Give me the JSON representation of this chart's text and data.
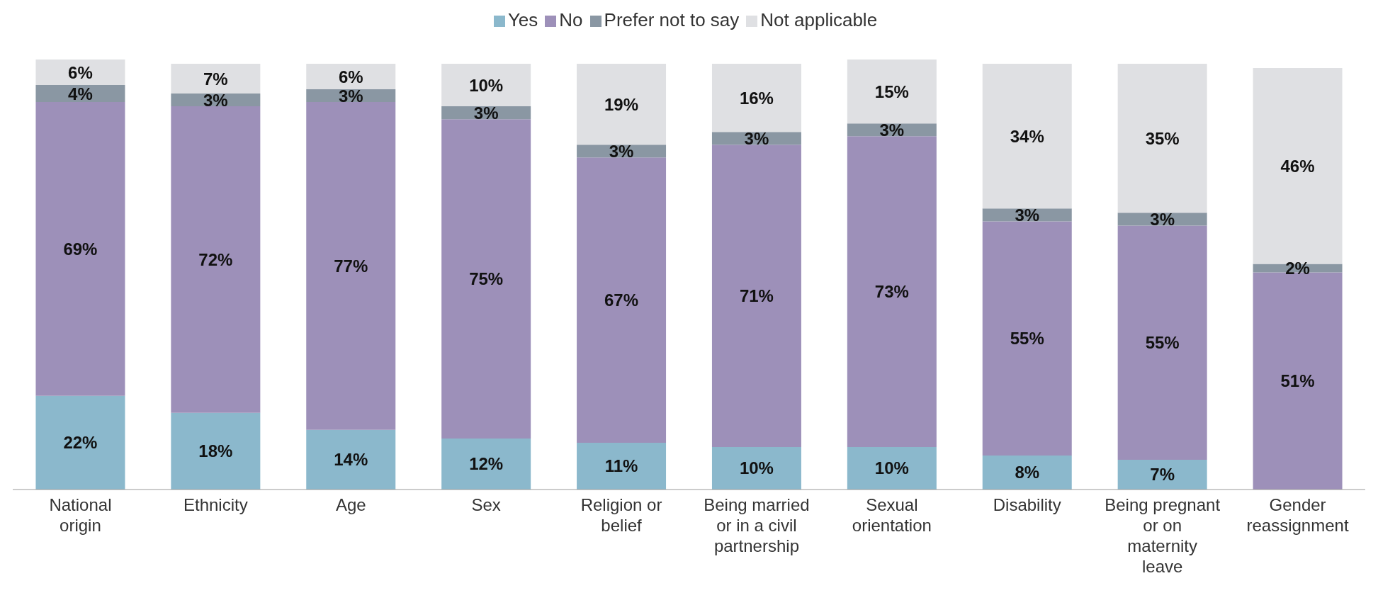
{
  "chart_data": {
    "type": "bar",
    "stacked": true,
    "legend": "top",
    "categories": [
      "National origin",
      "Ethnicity",
      "Age",
      "Sex",
      "Religion or belief",
      "Being married or in a civil partnership",
      "Sexual orientation",
      "Disability",
      "Being pregnant or on maternity leave",
      "Gender reassignment"
    ],
    "series": [
      {
        "name": "Yes",
        "color": "#8bb8cc",
        "values": [
          22,
          18,
          14,
          12,
          11,
          10,
          10,
          8,
          7,
          0
        ],
        "value_labels": [
          "22%",
          "18%",
          "14%",
          "12%",
          "11%",
          "10%",
          "10%",
          "8%",
          "7%",
          null
        ]
      },
      {
        "name": "No",
        "color": "#9d90b9",
        "values": [
          69,
          72,
          77,
          75,
          67,
          71,
          73,
          55,
          55,
          51
        ],
        "value_labels": [
          "69%",
          "72%",
          "77%",
          "75%",
          "67%",
          "71%",
          "73%",
          "55%",
          "55%",
          "51%"
        ]
      },
      {
        "name": "Prefer not to say",
        "color": "#8a97a3",
        "values": [
          4,
          3,
          3,
          3,
          3,
          3,
          3,
          3,
          3,
          2
        ],
        "value_labels": [
          "4%",
          "3%",
          "3%",
          "3%",
          "3%",
          "3%",
          "3%",
          "3%",
          "3%",
          "2%"
        ]
      },
      {
        "name": "Not applicable",
        "color": "#dfe0e3",
        "values": [
          6,
          7,
          6,
          10,
          19,
          16,
          15,
          34,
          35,
          46
        ],
        "value_labels": [
          "6%",
          "7%",
          "6%",
          "10%",
          "19%",
          "16%",
          "15%",
          "34%",
          "35%",
          "46%"
        ]
      }
    ]
  }
}
